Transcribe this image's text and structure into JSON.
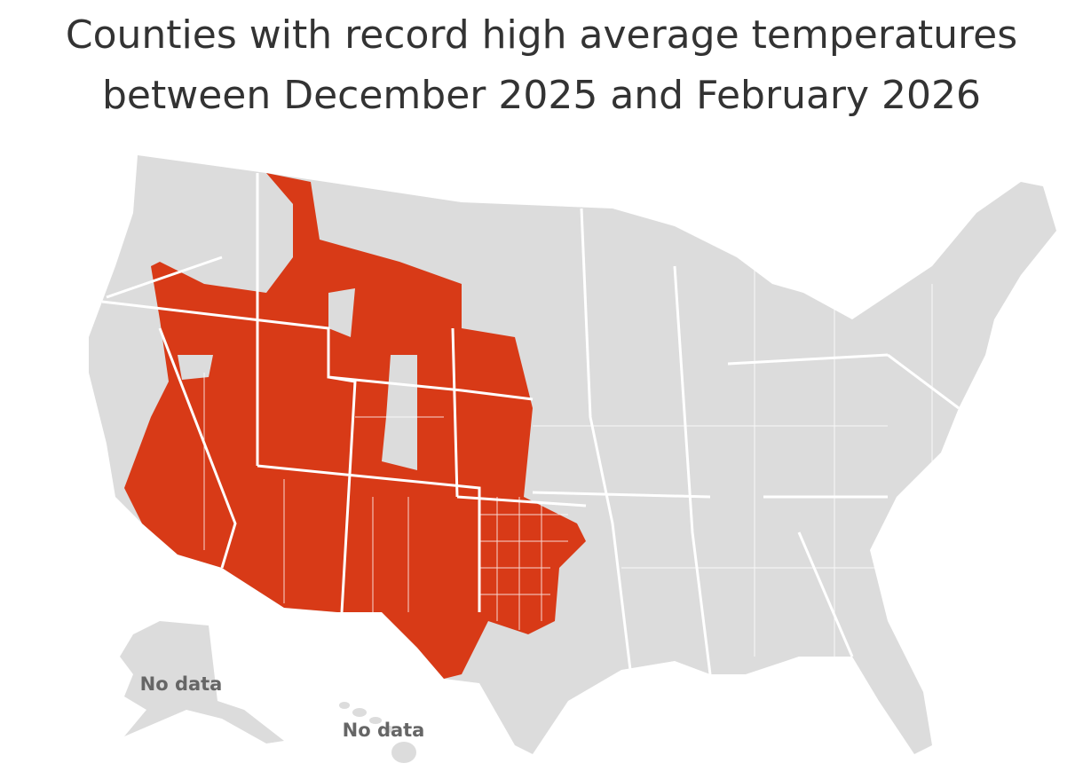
{
  "title": [
    "Counties with record high average temperatures",
    "between December 2025 and February 2026"
  ],
  "map": {
    "alaska_label": "No data",
    "hawaii_label": "No data"
  }
}
